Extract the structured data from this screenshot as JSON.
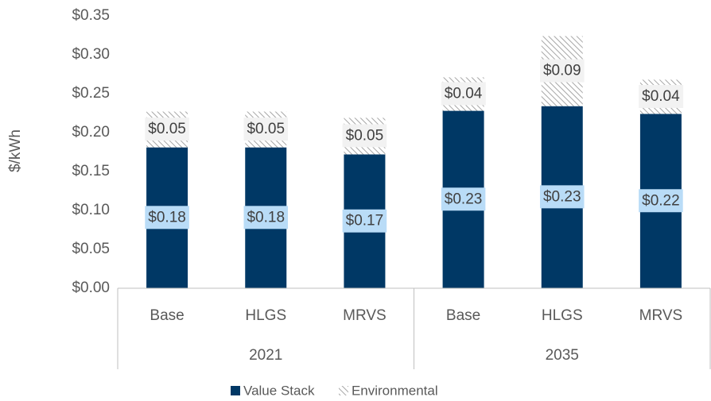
{
  "chart_data": {
    "type": "stacked_bar",
    "y_label": "$/kWh",
    "categories": [
      "Base",
      "HLGS",
      "MRVS",
      "Base",
      "HLGS",
      "MRVS"
    ],
    "groups": [
      "2021",
      "2035"
    ],
    "series": [
      {
        "name": "Value Stack",
        "color": "#003865",
        "label_color": "#b9dcf7",
        "values": [
          0.181,
          0.181,
          0.172,
          0.228,
          0.234,
          0.224
        ],
        "value_labels": [
          "$0.18",
          "$0.18",
          "$0.17",
          "$0.23",
          "$0.23",
          "$0.22"
        ]
      },
      {
        "name": "Environmental",
        "color": "#a6a6a6",
        "pattern": "hatch",
        "label_color": "#f2f2f2",
        "values": [
          0.046,
          0.046,
          0.047,
          0.043,
          0.09,
          0.044
        ],
        "value_labels": [
          "$0.05",
          "$0.05",
          "$0.05",
          "$0.04",
          "$0.09",
          "$0.04"
        ]
      }
    ],
    "ylim": [
      0,
      0.35
    ],
    "yticks": [
      {
        "value": 0,
        "label": "$0.00"
      },
      {
        "value": 0.05,
        "label": "$0.05"
      },
      {
        "value": 0.1,
        "label": "$0.10"
      },
      {
        "value": 0.15,
        "label": "$0.15"
      },
      {
        "value": 0.2,
        "label": "$0.20"
      },
      {
        "value": 0.25,
        "label": "$0.25"
      },
      {
        "value": 0.3,
        "label": "$0.30"
      },
      {
        "value": 0.35,
        "label": "$0.35"
      }
    ],
    "grid": false,
    "legend": "bottom"
  }
}
